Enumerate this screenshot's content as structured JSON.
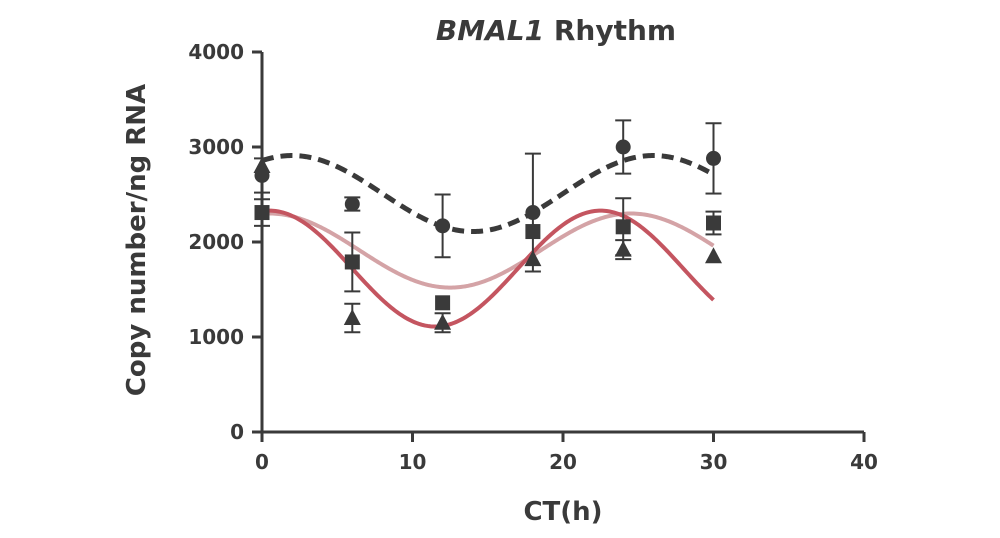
{
  "chart_data": {
    "type": "scatter",
    "title_italic": "BMAL1",
    "title_rest": " Rhythm",
    "xlabel": "CT(h)",
    "ylabel": "Copy number/ng RNA",
    "xlim": [
      0,
      40
    ],
    "ylim": [
      0,
      4000
    ],
    "xticks": [
      0,
      10,
      20,
      30,
      40
    ],
    "yticks": [
      0,
      1000,
      2000,
      3000,
      4000
    ],
    "grid": false,
    "series": [
      {
        "name": "circle",
        "marker": "circle",
        "color": "#3a3a3a",
        "points": [
          {
            "x": 0,
            "y": 2700,
            "err": 180
          },
          {
            "x": 6,
            "y": 2400,
            "err": 70
          },
          {
            "x": 12,
            "y": 2170,
            "err": 330
          },
          {
            "x": 18,
            "y": 2310,
            "err": 620
          },
          {
            "x": 24,
            "y": 3000,
            "err": 280
          },
          {
            "x": 30,
            "y": 2880,
            "err": 370
          }
        ],
        "fit": {
          "style": "dashed",
          "color": "#3a3a3a",
          "mean": 2510,
          "amplitude": 400,
          "period": 24,
          "peak": 2
        }
      },
      {
        "name": "square",
        "marker": "square",
        "color": "#3a3a3a",
        "points": [
          {
            "x": 0,
            "y": 2310,
            "err": 140
          },
          {
            "x": 6,
            "y": 1790,
            "err": 310
          },
          {
            "x": 12,
            "y": 1360,
            "err": 0
          },
          {
            "x": 18,
            "y": 2110,
            "err": 0
          },
          {
            "x": 24,
            "y": 2160,
            "err": 300
          },
          {
            "x": 30,
            "y": 2200,
            "err": 120
          }
        ],
        "fit": {
          "style": "solid",
          "color": "#d4a3a6",
          "mean": 1910,
          "amplitude": 390,
          "period": 24,
          "peak": 0.5
        }
      },
      {
        "name": "triangle",
        "marker": "triangle",
        "color": "#3a3a3a",
        "points": [
          {
            "x": 0,
            "y": 2800,
            "err": 0
          },
          {
            "x": 6,
            "y": 1200,
            "err": 150
          },
          {
            "x": 12,
            "y": 1150,
            "err": 100
          },
          {
            "x": 18,
            "y": 1820,
            "err": 0
          },
          {
            "x": 24,
            "y": 1920,
            "err": 100
          },
          {
            "x": 30,
            "y": 1850,
            "err": 0
          }
        ]
      }
    ],
    "extra_fits": [
      {
        "name": "red-fit",
        "style": "solid",
        "color": "#c45560",
        "mean": 1720,
        "amplitude": 610,
        "period": 22,
        "peak": 0.5
      }
    ]
  }
}
